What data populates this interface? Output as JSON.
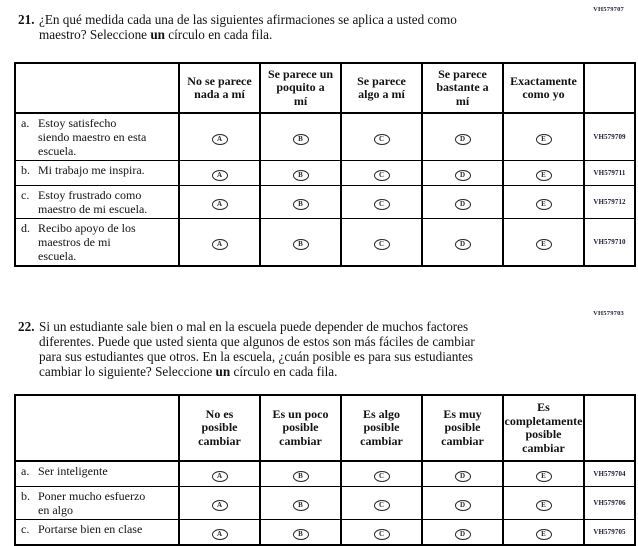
{
  "questions": [
    {
      "number": "21.",
      "code": "VH579707",
      "prompt_before_bold": "¿En qué medida cada una de las siguientes afirmaciones se aplica a usted como\nmaestro? Seleccione ",
      "prompt_bold": "un",
      "prompt_after_bold": " círculo en cada fila.",
      "columns": [
        "No se parece\nnada a mí",
        "Se parece un\npoquito a\nmí",
        "Se parece\nalgo a mí",
        "Se parece\nbastante a\nmí",
        "Exactamente\ncomo yo"
      ],
      "options": [
        "A",
        "B",
        "C",
        "D",
        "E"
      ],
      "rows": [
        {
          "letter": "a.",
          "text": "Estoy satisfecho\nsiendo maestro en esta\nescuela.",
          "code": "VH579709"
        },
        {
          "letter": "b.",
          "text": "Mi trabajo me inspira.",
          "code": "VH579711"
        },
        {
          "letter": "c.",
          "text": "Estoy frustrado como\nmaestro de mi escuela.",
          "code": "VH579712"
        },
        {
          "letter": "d.",
          "text": "Recibo apoyo de los\nmaestros de mi\nescuela.",
          "code": "VH579710"
        }
      ]
    },
    {
      "number": "22.",
      "code": "VH579703",
      "prompt_before_bold": "Si un estudiante sale bien o mal en la escuela puede depender de muchos factores\ndiferentes. Puede que usted sienta que algunos de estos son más fáciles de cambiar\npara sus estudiantes que otros. En la escuela, ¿cuán posible es para sus estudiantes\ncambiar lo siguiente? Seleccione ",
      "prompt_bold": "un",
      "prompt_after_bold": " círculo en cada fila.",
      "columns": [
        "No es\nposible\ncambiar",
        "Es un poco\nposible\ncambiar",
        "Es algo\nposible\ncambiar",
        "Es muy\nposible\ncambiar",
        "Es\ncompletamente\nposible\ncambiar"
      ],
      "options": [
        "A",
        "B",
        "C",
        "D",
        "E"
      ],
      "rows": [
        {
          "letter": "a.",
          "text": "Ser inteligente",
          "code": "VH579704"
        },
        {
          "letter": "b.",
          "text": "Poner mucho esfuerzo\nen algo",
          "code": "VH579706"
        },
        {
          "letter": "c.",
          "text": "Portarse bien en clase",
          "code": "VH579705"
        }
      ]
    }
  ]
}
